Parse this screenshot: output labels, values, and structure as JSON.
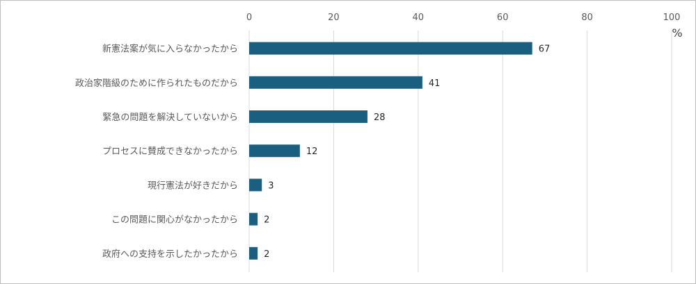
{
  "chart_data": {
    "type": "bar",
    "orientation": "horizontal",
    "categories": [
      "新憲法案が気に入らなかったから",
      "政治家階級のために作られたものだから",
      "緊急の問題を解決していないから",
      "プロセスに賛成できなかったから",
      "現行憲法が好きだから",
      "この問題に関心がなかったから",
      "政府への支持を示したかったから"
    ],
    "values": [
      67,
      41,
      28,
      12,
      3,
      2,
      2
    ],
    "xlim": [
      0,
      100
    ],
    "xticks": [
      0,
      20,
      40,
      60,
      80,
      100
    ],
    "unit_label": "%",
    "grid": true,
    "bar_color": "#1a5e80",
    "data_labels": true
  }
}
